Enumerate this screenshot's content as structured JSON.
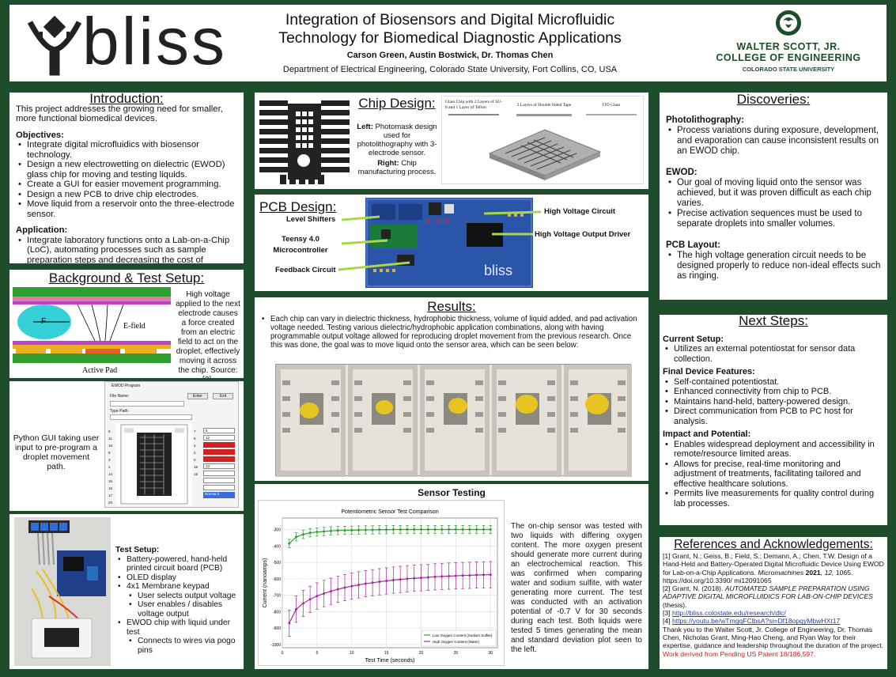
{
  "header": {
    "title_line1": "Integration of Biosensors and Digital Microfluidic",
    "title_line2": "Technology for Biomedical Diagnostic Applications",
    "authors": "Carson Green, Austin Bostwick, Dr. Thomas Chen",
    "affiliation": "Department of Electrical Engineering, Colorado State University, Fort Collins, CO, USA",
    "logo_text": "bliss",
    "college_line1": "WALTER SCOTT, JR.",
    "college_line2": "COLLEGE OF ENGINEERING",
    "college_line3": "COLORADO STATE UNIVERSITY"
  },
  "intro": {
    "title": "Introduction:",
    "text": "This project addresses the growing need for smaller, more functional biomedical devices.",
    "objectives_heading": "Objectives:",
    "objectives": [
      "Integrate digital microfluidics with biosensor technology.",
      "Design a new electrowetting on dielectric (EWOD) glass chip for moving and testing liquids.",
      "Create a GUI for easier movement programming.",
      "Design a new PCB to drive chip electrodes.",
      "Move liquid from a reservoir onto the three-electrode sensor."
    ],
    "application_heading": "Application:",
    "application": "Integrate laboratory functions onto a Lab-on-a-Chip (LoC), automating processes such as sample preparation steps and decreasing the cost of biological testing."
  },
  "background": {
    "title": "Background & Test Setup:",
    "fig_F": "F",
    "fig_efield": "E-field",
    "fig_active": "Active Pad",
    "caption": "High voltage applied to the next electrode causes a force created from an electric field to act on the droplet, effectively moving it across the chip. Source: [2].",
    "gui_caption": "Python GUI taking user input to pre-program a droplet movement path.",
    "gui_title": "EWOD Program",
    "gui_file_label": "File Name:",
    "gui_enter": "Enter",
    "gui_exit": "Exit",
    "gui_type_label": "Type Path:",
    "gui_numbers": [
      "8",
      "7",
      "6",
      "5",
      "11",
      "10",
      "9",
      "4",
      "3",
      "2",
      "1",
      "0",
      "12",
      "13",
      "14",
      "15",
      "16",
      "17",
      "18",
      "19",
      "20"
    ],
    "gui_footer": "Normal 3"
  },
  "test_setup": {
    "heading": "Test Setup:",
    "items": [
      "Battery-powered, hand-held printed circuit board (PCB)",
      "OLED display",
      "4x1 Membrane keypad"
    ],
    "keypad_sub": [
      "User selects output voltage",
      "User enables / disables voltage output"
    ],
    "chip_item": "EWOD chip with liquid under test",
    "chip_sub": [
      "Connects to wires via pogo pins"
    ]
  },
  "chip": {
    "title": "Chip Design:",
    "left_label": "Left:",
    "left_text": "Photomask design used for photolithography with 3-electrode sensor.",
    "right_label": "Right:",
    "right_text": "Chip manufacturing process.",
    "process_labels": [
      "Glass Chip with 2 Layers of SU-8 and 1 Layer of Teflon",
      "2 Layers of Double Sided Tape",
      "ITO Glass"
    ]
  },
  "pcb": {
    "title": "PCB Design:",
    "labels": [
      "Level Shifters",
      "Teensy 4.0 Microcontroller",
      "Feedback Circuit",
      "High Voltage Circuit",
      "High Voltage Output Driver"
    ],
    "board_text": "bliss"
  },
  "results": {
    "title": "Results:",
    "text": "Each chip can vary in dielectric thickness, hydrophobic thickness, volume of liquid added, and pad activation voltage needed. Testing various dielectric/hydrophobic application combinations, along with having programmable output voltage allowed for reproducing droplet movement from the previous research. Once this was done, the goal was to move liquid onto the sensor area, which can be seen below:"
  },
  "sensor": {
    "title": "Sensor Testing",
    "text": "The on-chip sensor was tested with two liquids with differing oxygen content. The more oxygen present should generate more current during an electrochemical reaction. This was confirmed when comparing water and sodium sulfite, with water generating more current. The test was conducted with an activation potential of -0.7 V for 30 seconds during each test. Both liquids were tested 5 times generating the mean and standard deviation plot seen to the left."
  },
  "chart_data": {
    "type": "line",
    "title": "Potentiometric Sensor Test Comparison",
    "xlabel": "Test Time (seconds)",
    "ylabel": "Current (nanoamps)",
    "xlim": [
      0,
      31
    ],
    "ylim": [
      -1020,
      -230
    ],
    "xticks": [
      0,
      5,
      10,
      15,
      20,
      25,
      30
    ],
    "yticks": [
      -300,
      -400,
      -500,
      -600,
      -700,
      -800,
      -900,
      -1000
    ],
    "grid": true,
    "legend": "bottom-right",
    "series": [
      {
        "name": "Low Oxygen Content (Sodium Sulfite)",
        "color": "#2e9e2e",
        "x": [
          1,
          2,
          3,
          4,
          5,
          6,
          7,
          8,
          9,
          10,
          11,
          12,
          13,
          14,
          15,
          16,
          17,
          18,
          19,
          20,
          21,
          22,
          23,
          24,
          25,
          26,
          27,
          28,
          29,
          30
        ],
        "y": [
          -385,
          -345,
          -330,
          -320,
          -315,
          -312,
          -308,
          -306,
          -305,
          -304,
          -303,
          -302,
          -302,
          -301,
          -301,
          -300,
          -300,
          -300,
          -300,
          -300,
          -300,
          -300,
          -300,
          -300,
          -300,
          -300,
          -300,
          -300,
          -300,
          -300
        ],
        "err": 25
      },
      {
        "name": "High Oxygen Content (Water)",
        "color": "#a02d9a",
        "x": [
          1,
          2,
          3,
          4,
          5,
          6,
          7,
          8,
          9,
          10,
          11,
          12,
          13,
          14,
          15,
          16,
          17,
          18,
          19,
          20,
          21,
          22,
          23,
          24,
          25,
          26,
          27,
          28,
          29,
          30
        ],
        "y": [
          -870,
          -785,
          -750,
          -725,
          -705,
          -690,
          -676,
          -664,
          -654,
          -645,
          -637,
          -630,
          -624,
          -618,
          -613,
          -608,
          -604,
          -600,
          -597,
          -594,
          -591,
          -588,
          -586,
          -584,
          -582,
          -580,
          -579,
          -577,
          -576,
          -575
        ],
        "err": 80
      }
    ]
  },
  "discoveries": {
    "title": "Discoveries:",
    "photo_heading": "Photolithography:",
    "photo": [
      "Process variations during exposure, development, and evaporation can cause inconsistent results on an EWOD chip."
    ],
    "ewod_heading": "EWOD:",
    "ewod": [
      "Our goal of moving liquid onto the sensor was achieved, but it was proven difficult as each chip varies.",
      "Precise activation sequences must be used to separate droplets into smaller volumes."
    ],
    "pcb_heading": "PCB Layout:",
    "pcb": [
      "The high voltage generation circuit needs to be designed properly to reduce non-ideal effects such as ringing."
    ]
  },
  "next": {
    "title": "Next Steps:",
    "current_heading": "Current Setup:",
    "current": [
      "Utilizes an external potentiostat for sensor data collection."
    ],
    "final_heading": "Final Device Features:",
    "final": [
      "Self-contained potentiostat.",
      "Enhanced connectivity from chip to PCB.",
      "Maintains hand-held, battery-powered design.",
      "Direct communication from PCB to PC host for analysis."
    ],
    "impact_heading": "Impact and Potential:",
    "impact": [
      "Enables widespread deployment and accessibility in remote/resource limited areas.",
      "Allows for precise, real-time monitoring and adjustment of treatments, facilitating tailored and effective healthcare solutions.",
      "Permits live measurements for quality control during lab processes."
    ]
  },
  "refs": {
    "title": "References and Acknowledgements:",
    "r1_a": "[1] Grant, N.; Geiss, B.; Field, S.; Demann, A.; Chen, T.W. Design of a Hand-Held and Battery-Operated Digital Microfluidic Device Using EWOD for Lab-on-a-Chip Applications.",
    "r1_journal": "Micromachines",
    "r1_year": "2021",
    "r1_vol": ", 12,",
    "r1_b": "1065. https://doi.org/10.3390/ mi12091065",
    "r2_a": "[2] Grant, N. (2018).",
    "r2_title": "AUTOMATED SAMPLE PREPARATION USING ADAPTIVE DIGITAL MICROFLUIDICS FOR LAB-ON-CHIP DEVICES",
    "r2_b": "(thesis).",
    "r3_label": "[3]",
    "r3_link": "http://bliss.colostate.edu/research/dlc/",
    "r4_label": "[4]",
    "r4_link": "https://youtu.be/wTmgqFClbsA?si=Df18opqyMbwHXt17",
    "ack": "Thank you to the Walter Scott, Jr. College of Engineering, Dr. Thomas Chen, Nicholas Grant, Ming-Hao Cheng, and Ryan Way for their expertise, guidance and leadership throughout the duration of the project.",
    "patent": "Work derived from Pending US Patent 18/186,597."
  }
}
